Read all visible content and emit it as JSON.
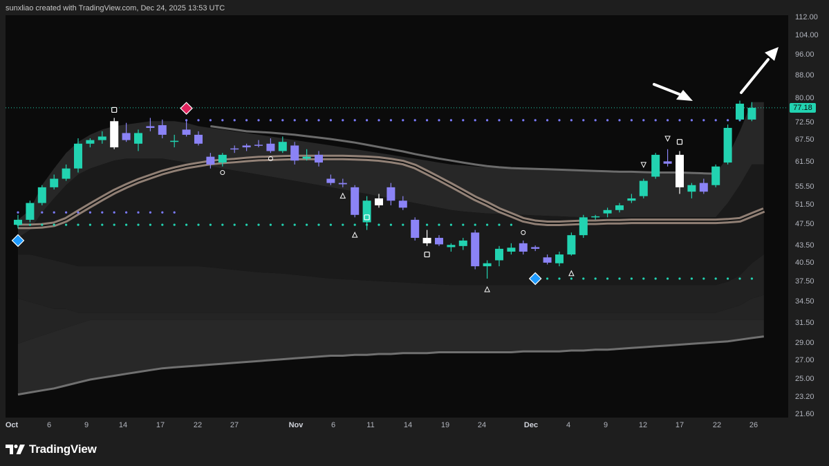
{
  "header": {
    "caption": "sunxliao created with TradingView.com, Dec 24, 2025 13:53 UTC"
  },
  "footer": {
    "brand": "TradingView",
    "logo_icon": "tradingview-logo-icon"
  },
  "colors": {
    "background": "#0b0b0b",
    "frame": "#1e1e1e",
    "bull": "#22d3b1",
    "bear": "#8b83f6",
    "neutral": "#ffffff",
    "band_fill": "#2a2a2a",
    "center_line": "#b8a193",
    "price_tag": "#22d3b1",
    "blue_dots": "#7b7bff",
    "teal_dots": "#22d3b1",
    "sell_diamond": "#e0245e",
    "buy_diamond": "#1e9bff"
  },
  "chart_data": {
    "type": "candlestick",
    "title": "",
    "xlabel": "",
    "ylabel": "",
    "x_tick_labels": [
      "Oct",
      "6",
      "9",
      "14",
      "17",
      "22",
      "27",
      "Nov",
      "6",
      "11",
      "14",
      "19",
      "24",
      "Dec",
      "4",
      "9",
      "12",
      "17",
      "22",
      "26"
    ],
    "y_tick_labels": [
      "112.00",
      "104.00",
      "96.00",
      "88.00",
      "80.00",
      "72.50",
      "67.50",
      "61.50",
      "55.50",
      "51.50",
      "47.50",
      "43.50",
      "40.50",
      "37.50",
      "34.50",
      "31.50",
      "29.00",
      "27.00",
      "25.00",
      "23.20",
      "21.60"
    ],
    "y_axis": "log",
    "y_range": [
      21.6,
      112.0
    ],
    "last_price": "77.18",
    "grid": false,
    "candles": [
      {
        "o": 47.5,
        "h": 49.5,
        "l": 46.8,
        "c": 48.5,
        "color": "bull"
      },
      {
        "o": 48.5,
        "h": 52.5,
        "l": 48.0,
        "c": 52.0,
        "color": "bull"
      },
      {
        "o": 52.0,
        "h": 56.0,
        "l": 51.5,
        "c": 55.5,
        "color": "bull"
      },
      {
        "o": 55.5,
        "h": 58.5,
        "l": 55.0,
        "c": 57.5,
        "color": "bull"
      },
      {
        "o": 57.5,
        "h": 61.0,
        "l": 57.0,
        "c": 60.0,
        "color": "bull"
      },
      {
        "o": 60.0,
        "h": 68.0,
        "l": 59.0,
        "c": 66.5,
        "color": "bull"
      },
      {
        "o": 66.5,
        "h": 68.0,
        "l": 65.5,
        "c": 67.5,
        "color": "bull"
      },
      {
        "o": 67.5,
        "h": 70.0,
        "l": 66.5,
        "c": 68.5,
        "color": "bull"
      },
      {
        "o": 73.0,
        "h": 74.0,
        "l": 65.0,
        "c": 65.5,
        "color": "neutral"
      },
      {
        "o": 69.5,
        "h": 72.5,
        "l": 67.0,
        "c": 67.5,
        "color": "bear"
      },
      {
        "o": 66.5,
        "h": 70.5,
        "l": 64.5,
        "c": 69.5,
        "color": "bull"
      },
      {
        "o": 71.5,
        "h": 74.0,
        "l": 70.0,
        "c": 71.0,
        "color": "bear"
      },
      {
        "o": 71.8,
        "h": 73.5,
        "l": 68.0,
        "c": 69.0,
        "color": "bear"
      },
      {
        "o": 67.0,
        "h": 69.0,
        "l": 65.5,
        "c": 67.3,
        "color": "bull"
      },
      {
        "o": 70.5,
        "h": 73.0,
        "l": 68.5,
        "c": 69.0,
        "color": "bear"
      },
      {
        "o": 69.0,
        "h": 70.0,
        "l": 66.0,
        "c": 66.5,
        "color": "bear"
      },
      {
        "o": 63.0,
        "h": 64.0,
        "l": 60.0,
        "c": 61.0,
        "color": "bear"
      },
      {
        "o": 61.5,
        "h": 64.0,
        "l": 60.5,
        "c": 63.5,
        "color": "bull"
      },
      {
        "o": 65.0,
        "h": 66.0,
        "l": 64.0,
        "c": 65.2,
        "color": "bear"
      },
      {
        "o": 65.5,
        "h": 66.5,
        "l": 64.5,
        "c": 66.0,
        "color": "bear"
      },
      {
        "o": 66.2,
        "h": 67.5,
        "l": 65.5,
        "c": 66.0,
        "color": "bear"
      },
      {
        "o": 66.5,
        "h": 68.0,
        "l": 64.0,
        "c": 64.5,
        "color": "bear"
      },
      {
        "o": 64.5,
        "h": 68.5,
        "l": 64.0,
        "c": 67.0,
        "color": "bull"
      },
      {
        "o": 66.0,
        "h": 67.0,
        "l": 61.0,
        "c": 62.0,
        "color": "bear"
      },
      {
        "o": 63.0,
        "h": 65.0,
        "l": 62.0,
        "c": 62.5,
        "color": "bull"
      },
      {
        "o": 63.5,
        "h": 64.5,
        "l": 60.5,
        "c": 61.5,
        "color": "bear"
      },
      {
        "o": 57.5,
        "h": 58.5,
        "l": 56.0,
        "c": 56.5,
        "color": "bear"
      },
      {
        "o": 56.5,
        "h": 57.5,
        "l": 55.5,
        "c": 56.2,
        "color": "bear"
      },
      {
        "o": 55.5,
        "h": 56.0,
        "l": 49.0,
        "c": 49.5,
        "color": "bear"
      },
      {
        "o": 48.0,
        "h": 53.5,
        "l": 46.5,
        "c": 52.5,
        "color": "bull"
      },
      {
        "o": 53.0,
        "h": 54.0,
        "l": 51.0,
        "c": 51.5,
        "color": "neutral"
      },
      {
        "o": 55.5,
        "h": 56.5,
        "l": 51.5,
        "c": 52.5,
        "color": "bear"
      },
      {
        "o": 52.5,
        "h": 53.5,
        "l": 50.5,
        "c": 51.0,
        "color": "bear"
      },
      {
        "o": 48.5,
        "h": 49.0,
        "l": 44.5,
        "c": 45.0,
        "color": "bear"
      },
      {
        "o": 45.0,
        "h": 46.5,
        "l": 43.5,
        "c": 44.0,
        "color": "neutral"
      },
      {
        "o": 45.0,
        "h": 45.5,
        "l": 43.5,
        "c": 43.8,
        "color": "bear"
      },
      {
        "o": 43.3,
        "h": 44.0,
        "l": 42.5,
        "c": 43.7,
        "color": "bull"
      },
      {
        "o": 43.5,
        "h": 45.0,
        "l": 42.8,
        "c": 44.5,
        "color": "bull"
      },
      {
        "o": 46.0,
        "h": 46.5,
        "l": 39.5,
        "c": 40.0,
        "color": "bear"
      },
      {
        "o": 40.0,
        "h": 41.0,
        "l": 38.0,
        "c": 40.5,
        "color": "bull"
      },
      {
        "o": 41.0,
        "h": 43.5,
        "l": 40.0,
        "c": 43.0,
        "color": "bull"
      },
      {
        "o": 42.5,
        "h": 44.0,
        "l": 42.0,
        "c": 43.2,
        "color": "bull"
      },
      {
        "o": 44.0,
        "h": 44.5,
        "l": 42.0,
        "c": 42.5,
        "color": "bear"
      },
      {
        "o": 43.3,
        "h": 43.6,
        "l": 42.6,
        "c": 43.0,
        "color": "bear"
      },
      {
        "o": 41.5,
        "h": 42.0,
        "l": 40.3,
        "c": 40.6,
        "color": "bear"
      },
      {
        "o": 40.5,
        "h": 42.5,
        "l": 40.0,
        "c": 42.0,
        "color": "bull"
      },
      {
        "o": 42.0,
        "h": 46.0,
        "l": 41.8,
        "c": 45.5,
        "color": "bull"
      },
      {
        "o": 45.5,
        "h": 49.5,
        "l": 45.0,
        "c": 49.0,
        "color": "bull"
      },
      {
        "o": 49.0,
        "h": 49.5,
        "l": 48.5,
        "c": 49.2,
        "color": "bull"
      },
      {
        "o": 49.8,
        "h": 51.0,
        "l": 49.0,
        "c": 50.5,
        "color": "bull"
      },
      {
        "o": 50.5,
        "h": 52.0,
        "l": 50.0,
        "c": 51.5,
        "color": "bull"
      },
      {
        "o": 52.5,
        "h": 54.0,
        "l": 52.0,
        "c": 53.0,
        "color": "bull"
      },
      {
        "o": 53.5,
        "h": 57.5,
        "l": 53.0,
        "c": 57.0,
        "color": "bull"
      },
      {
        "o": 58.0,
        "h": 64.0,
        "l": 57.5,
        "c": 63.5,
        "color": "bull"
      },
      {
        "o": 61.8,
        "h": 65.0,
        "l": 60.5,
        "c": 61.2,
        "color": "bear"
      },
      {
        "o": 63.5,
        "h": 64.5,
        "l": 54.0,
        "c": 55.5,
        "color": "neutral"
      },
      {
        "o": 54.5,
        "h": 56.5,
        "l": 53.0,
        "c": 56.0,
        "color": "bull"
      },
      {
        "o": 56.5,
        "h": 57.5,
        "l": 54.0,
        "c": 54.5,
        "color": "bear"
      },
      {
        "o": 56.0,
        "h": 61.0,
        "l": 55.5,
        "c": 60.5,
        "color": "bull"
      },
      {
        "o": 61.5,
        "h": 72.0,
        "l": 61.0,
        "c": 71.0,
        "color": "bull"
      },
      {
        "o": 73.5,
        "h": 79.5,
        "l": 73.0,
        "c": 78.5,
        "color": "bull"
      },
      {
        "o": 73.5,
        "h": 79.0,
        "l": 73.0,
        "c": 77.18,
        "color": "bull"
      }
    ],
    "upper_band_outer": [
      48.5,
      50.5,
      56,
      60,
      64,
      67,
      69,
      70.5,
      71.5,
      72,
      72.5,
      73,
      73,
      73,
      72.5,
      71.5,
      71,
      70.5,
      70,
      69.5,
      69,
      68.5,
      68,
      67.5,
      67,
      66.5,
      66,
      65.5,
      65,
      64.5,
      64,
      63.5,
      63,
      62.5,
      62,
      61.5,
      61,
      60.8,
      60.5,
      60.3,
      60.1,
      60,
      60,
      60,
      59.8,
      59.7,
      59.6,
      59.5,
      59.4,
      59.3,
      59.2,
      59.2,
      59.1,
      59,
      59,
      59,
      58.9,
      58.8,
      58.7,
      63,
      70,
      79,
      79
    ],
    "upper_band_inner": [
      45,
      46.5,
      50,
      53,
      56,
      58.5,
      60,
      61,
      62,
      62.5,
      62.5,
      62.5,
      62.5,
      62,
      61.5,
      61,
      60.5,
      60,
      59.5,
      59,
      58.5,
      58,
      57.5,
      57,
      56.5,
      56,
      55.5,
      55,
      54.5,
      54,
      53.5,
      53,
      52.5,
      52,
      51.5,
      51,
      50.5,
      50.2,
      50,
      49.8,
      49.7,
      49.6,
      49.5,
      49.4,
      49.3,
      49.2,
      49.1,
      49,
      49,
      49,
      49,
      49,
      49,
      49,
      49,
      49,
      49,
      49,
      49,
      52,
      56,
      61,
      61
    ],
    "center_line": [
      47.2,
      47.2,
      47.3,
      47.6,
      48.5,
      50,
      51.5,
      53,
      54.5,
      55.8,
      57,
      58,
      59,
      59.8,
      60.5,
      61,
      61.5,
      61.8,
      62,
      62.3,
      62.5,
      62.6,
      62.7,
      62.8,
      62.8,
      62.8,
      62.8,
      62.8,
      62.7,
      62.6,
      62.4,
      62,
      61.5,
      60.5,
      59,
      57.5,
      56,
      54.5,
      53,
      51.8,
      50.5,
      49.5,
      48.5,
      48,
      47.8,
      47.8,
      47.9,
      48,
      48,
      48.1,
      48.1,
      48.2,
      48.2,
      48.2,
      48.2,
      48.2,
      48.2,
      48.2,
      48.2,
      48.3,
      48.5,
      49.5,
      50.5
    ],
    "lower_band_inner": [
      42,
      42,
      41.5,
      41,
      40.5,
      40,
      40,
      40,
      40,
      40,
      40,
      40,
      40,
      40,
      40,
      40,
      39.8,
      39.6,
      39.4,
      39.2,
      39,
      38.9,
      38.8,
      38.6,
      38.4,
      38.2,
      38,
      37.9,
      37.8,
      37.7,
      37.6,
      37.5,
      37.4,
      37.3,
      37.2,
      37.1,
      37,
      37,
      37,
      37,
      37,
      37,
      37,
      37,
      37,
      37,
      37,
      37,
      37,
      37,
      37,
      37,
      37,
      37,
      37,
      37,
      37,
      37,
      37,
      37.5,
      38.5,
      40.5,
      42
    ],
    "lower_band_outer": [
      35,
      34.5,
      34,
      33.5,
      33.5,
      33,
      33,
      33,
      33,
      33,
      33,
      33,
      33,
      33,
      33,
      33,
      33,
      33,
      33,
      33,
      33,
      33,
      33,
      33,
      33,
      33,
      33,
      33,
      33,
      33,
      33,
      33,
      33,
      33,
      33,
      33,
      33,
      33,
      33,
      33,
      33,
      33,
      33,
      33,
      33,
      33,
      33,
      33,
      33,
      33,
      33,
      33,
      33,
      33,
      33,
      33,
      33,
      33,
      33,
      33.5,
      34,
      35,
      35.5
    ],
    "lower_band_deep": [
      29,
      29.5,
      30,
      30.5,
      31,
      31.5,
      32,
      32,
      32,
      32,
      32,
      32,
      32,
      32,
      32,
      32,
      32,
      32,
      32,
      32,
      32,
      32,
      32,
      32,
      32,
      32,
      32,
      32,
      32,
      32,
      32,
      32,
      32,
      32,
      32,
      32,
      32,
      32,
      32,
      32,
      32,
      32,
      32,
      32,
      32,
      32,
      32,
      32,
      32,
      32,
      32,
      32,
      32,
      32,
      32,
      32,
      32,
      32,
      32,
      32,
      32,
      32,
      32
    ],
    "lower_line": [
      23.5,
      23.7,
      23.9,
      24.1,
      24.4,
      24.7,
      25,
      25.2,
      25.4,
      25.6,
      25.8,
      26,
      26.2,
      26.3,
      26.4,
      26.5,
      26.6,
      26.7,
      26.8,
      26.9,
      27,
      27.1,
      27.2,
      27.3,
      27.4,
      27.5,
      27.6,
      27.6,
      27.7,
      27.7,
      27.8,
      27.8,
      27.9,
      27.9,
      27.9,
      28,
      28,
      28,
      28,
      28,
      28,
      28,
      28.1,
      28.1,
      28.1,
      28.1,
      28.2,
      28.2,
      28.3,
      28.3,
      28.4,
      28.5,
      28.6,
      28.7,
      28.8,
      28.9,
      29,
      29.1,
      29.2,
      29.3,
      29.5,
      29.7,
      29.9
    ],
    "upper_gray_line": [
      null,
      null,
      null,
      null,
      null,
      null,
      null,
      null,
      null,
      null,
      null,
      null,
      null,
      null,
      null,
      null,
      71.5,
      71,
      70.5,
      70,
      69.8,
      69.6,
      69.3,
      69,
      68.6,
      68.2,
      67.8,
      67.3,
      66.8,
      66.2,
      65.6,
      65,
      64.4,
      63.7,
      63.1,
      62.5,
      62,
      61.5,
      61,
      60.6,
      60.3,
      60.1,
      60,
      59.9,
      59.8,
      59.7,
      59.6,
      59.5,
      59.4,
      59.3,
      59.2,
      59.2,
      59.1,
      59,
      59,
      59,
      58.9,
      58.8,
      58.7,
      null,
      null,
      null,
      null
    ],
    "blue_dot_lines": [
      {
        "value": 50.0,
        "from": 0,
        "to": 13
      },
      {
        "value": 73.3,
        "from": 14,
        "to": 60
      }
    ],
    "teal_dot_lines": [
      {
        "value": 47.5,
        "from": 0,
        "to": 41
      },
      {
        "value": 38.0,
        "from": 44,
        "to": 61
      }
    ],
    "markers": [
      {
        "kind": "diamond",
        "color": "sell",
        "i": 14,
        "value": 77.0
      },
      {
        "kind": "diamond",
        "color": "buy",
        "i": 0,
        "value": 44.5
      },
      {
        "kind": "diamond",
        "color": "buy",
        "i": 43,
        "value": 38.0
      },
      {
        "kind": "square",
        "i": 8,
        "value": 76.5
      },
      {
        "kind": "circle",
        "i": 17,
        "value": 59.0
      },
      {
        "kind": "circle",
        "i": 21,
        "value": 62.5
      },
      {
        "kind": "triangle-up",
        "i": 27,
        "value": 53.5
      },
      {
        "kind": "square",
        "i": 29,
        "value": 49.0
      },
      {
        "kind": "triangle-up",
        "i": 28,
        "value": 45.5
      },
      {
        "kind": "square",
        "i": 34,
        "value": 42.0
      },
      {
        "kind": "triangle-up",
        "i": 39,
        "value": 36.3
      },
      {
        "kind": "circle",
        "i": 42,
        "value": 46.0
      },
      {
        "kind": "triangle-up",
        "i": 46,
        "value": 38.8
      },
      {
        "kind": "triangle-down",
        "i": 52,
        "value": 61.0
      },
      {
        "kind": "triangle-down",
        "i": 54,
        "value": 68.0
      },
      {
        "kind": "square",
        "i": 55,
        "value": 67.0
      }
    ],
    "annotations": [
      "arrow-pointing-at-last-candle",
      "arrow-pointing-up-right"
    ]
  }
}
